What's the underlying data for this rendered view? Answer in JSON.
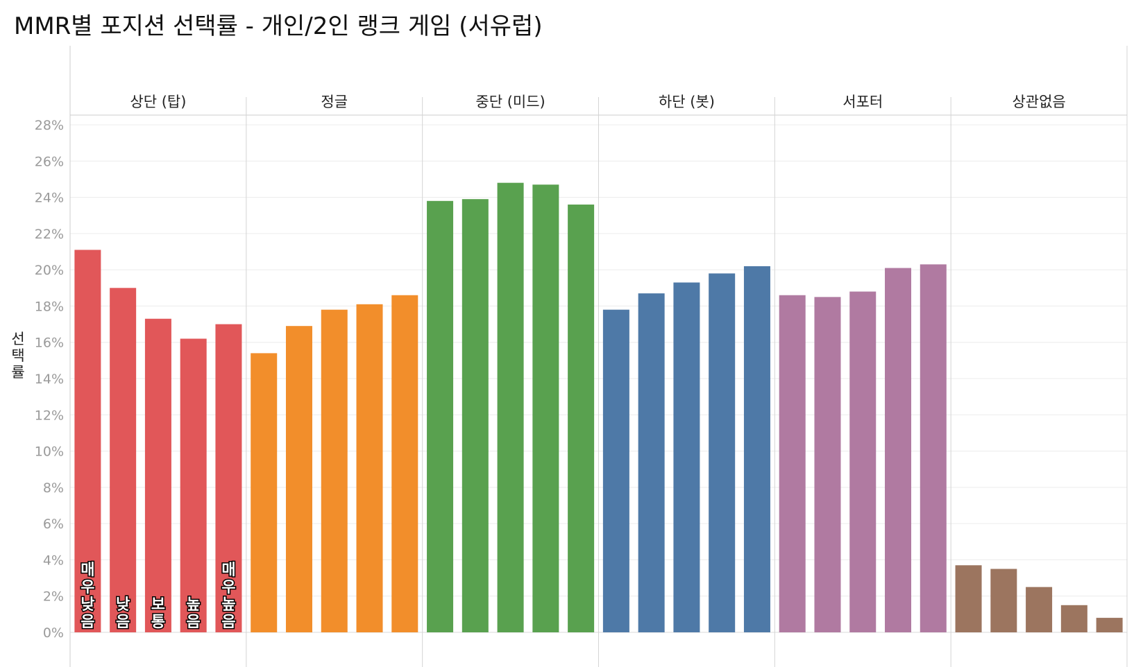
{
  "chart_data": {
    "type": "bar",
    "title": "MMR별 포지션 선택률 - 개인/2인 랭크 게임 (서유럽)",
    "ylabel": "선택률",
    "xlabel": "",
    "ylim": [
      0,
      28
    ],
    "y_ticks": [
      "0%",
      "2%",
      "4%",
      "6%",
      "8%",
      "10%",
      "12%",
      "14%",
      "16%",
      "18%",
      "20%",
      "22%",
      "24%",
      "26%",
      "28%"
    ],
    "y_tick_values": [
      0,
      2,
      4,
      6,
      8,
      10,
      12,
      14,
      16,
      18,
      20,
      22,
      24,
      26,
      28
    ],
    "grid": true,
    "mmr_labels": [
      "매우 낮음",
      "낮음",
      "보통",
      "높음",
      "매우 높음"
    ],
    "groups": [
      {
        "name": "상단 (탑)",
        "color": "#e15759",
        "values": [
          21.1,
          19.0,
          17.3,
          16.2,
          17.0
        ]
      },
      {
        "name": "정글",
        "color": "#f28e2b",
        "values": [
          15.4,
          16.9,
          17.8,
          18.1,
          18.6
        ]
      },
      {
        "name": "중단 (미드)",
        "color": "#59a14f",
        "values": [
          23.8,
          23.9,
          24.8,
          24.7,
          23.6
        ]
      },
      {
        "name": "하단 (봇)",
        "color": "#4e79a7",
        "values": [
          17.8,
          18.7,
          19.3,
          19.8,
          20.2
        ]
      },
      {
        "name": "서포터",
        "color": "#b07aa1",
        "values": [
          18.6,
          18.5,
          18.8,
          20.1,
          20.3
        ]
      },
      {
        "name": "상관없음",
        "color": "#9c755f",
        "values": [
          3.7,
          3.5,
          2.5,
          1.5,
          0.8
        ]
      }
    ]
  }
}
